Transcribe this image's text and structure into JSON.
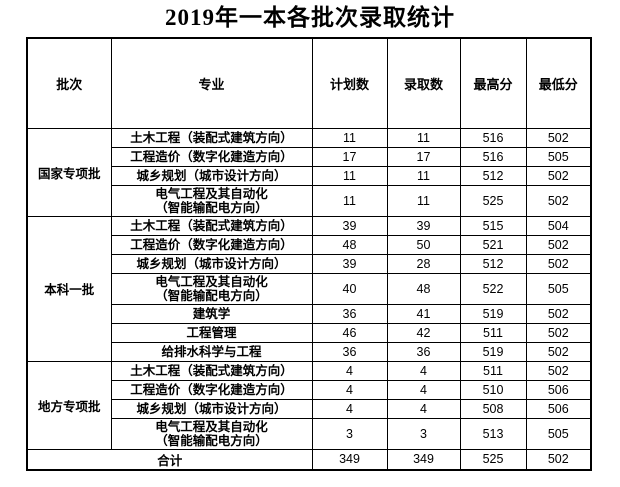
{
  "title": "2019年一本各批次录取统计",
  "colors": {
    "text": "#000000",
    "border": "#000000",
    "background": "#ffffff"
  },
  "table": {
    "headers": [
      "批次",
      "专业",
      "计划数",
      "录取数",
      "最高分",
      "最低分"
    ],
    "groups": [
      {
        "batch": "国家专项批",
        "rows": [
          {
            "major": "土木工程（装配式建筑方向）",
            "planned": "11",
            "admitted": "11",
            "max": "516",
            "min": "502"
          },
          {
            "major": "工程造价（数字化建造方向）",
            "planned": "17",
            "admitted": "17",
            "max": "516",
            "min": "505"
          },
          {
            "major": "城乡规划（城市设计方向）",
            "planned": "11",
            "admitted": "11",
            "max": "512",
            "min": "502"
          },
          {
            "major": "电气工程及其自动化\n（智能输配电方向）",
            "planned": "11",
            "admitted": "11",
            "max": "525",
            "min": "502",
            "two_line": true
          }
        ]
      },
      {
        "batch": "本科一批",
        "rows": [
          {
            "major": "土木工程（装配式建筑方向）",
            "planned": "39",
            "admitted": "39",
            "max": "515",
            "min": "504"
          },
          {
            "major": "工程造价（数字化建造方向）",
            "planned": "48",
            "admitted": "50",
            "max": "521",
            "min": "502"
          },
          {
            "major": "城乡规划（城市设计方向）",
            "planned": "39",
            "admitted": "28",
            "max": "512",
            "min": "502"
          },
          {
            "major": "电气工程及其自动化\n（智能输配电方向）",
            "planned": "40",
            "admitted": "48",
            "max": "522",
            "min": "505",
            "two_line": true
          },
          {
            "major": "建筑学",
            "planned": "36",
            "admitted": "41",
            "max": "519",
            "min": "502"
          },
          {
            "major": "工程管理",
            "planned": "46",
            "admitted": "42",
            "max": "511",
            "min": "502"
          },
          {
            "major": "给排水科学与工程",
            "planned": "36",
            "admitted": "36",
            "max": "519",
            "min": "502"
          }
        ]
      },
      {
        "batch": "地方专项批",
        "rows": [
          {
            "major": "土木工程（装配式建筑方向）",
            "planned": "4",
            "admitted": "4",
            "max": "511",
            "min": "502"
          },
          {
            "major": "工程造价（数字化建造方向）",
            "planned": "4",
            "admitted": "4",
            "max": "510",
            "min": "506"
          },
          {
            "major": "城乡规划（城市设计方向）",
            "planned": "4",
            "admitted": "4",
            "max": "508",
            "min": "506"
          },
          {
            "major": "电气工程及其自动化\n（智能输配电方向）",
            "planned": "3",
            "admitted": "3",
            "max": "513",
            "min": "505",
            "two_line": true
          }
        ]
      }
    ],
    "total": {
      "label": "合计",
      "planned": "349",
      "admitted": "349",
      "max": "525",
      "min": "502"
    }
  }
}
